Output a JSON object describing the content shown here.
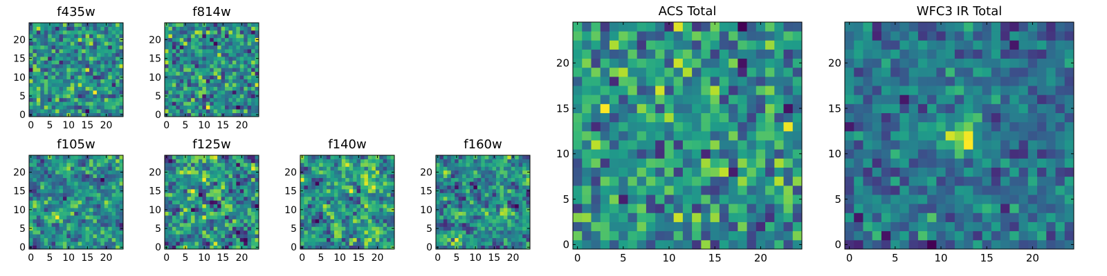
{
  "chart_data": [
    {
      "type": "heatmap",
      "title": "f435w",
      "grid": [
        25,
        25
      ],
      "cmap": "viridis",
      "x_ticks": [
        0,
        5,
        10,
        15,
        20
      ],
      "y_ticks": [
        0,
        5,
        10,
        15,
        20
      ],
      "seed": 11,
      "smooth": 0,
      "blob": null
    },
    {
      "type": "heatmap",
      "title": "f814w",
      "grid": [
        25,
        25
      ],
      "cmap": "viridis",
      "x_ticks": [
        0,
        5,
        10,
        15,
        20
      ],
      "y_ticks": [
        0,
        5,
        10,
        15,
        20
      ],
      "seed": 23,
      "smooth": 0,
      "blob": null
    },
    {
      "type": "heatmap",
      "title": "f105w",
      "grid": [
        25,
        25
      ],
      "cmap": "viridis",
      "x_ticks": [
        0,
        5,
        10,
        15,
        20
      ],
      "y_ticks": [
        0,
        5,
        10,
        15,
        20
      ],
      "seed": 37,
      "smooth": 1,
      "blob": null
    },
    {
      "type": "heatmap",
      "title": "f125w",
      "grid": [
        25,
        25
      ],
      "cmap": "viridis",
      "x_ticks": [
        0,
        5,
        10,
        15,
        20
      ],
      "y_ticks": [
        0,
        5,
        10,
        15,
        20
      ],
      "seed": 41,
      "smooth": 1,
      "blob": null
    },
    {
      "type": "heatmap",
      "title": "f140w",
      "grid": [
        25,
        25
      ],
      "cmap": "viridis",
      "x_ticks": [
        0,
        5,
        10,
        15,
        20
      ],
      "y_ticks": [
        0,
        5,
        10,
        15,
        20
      ],
      "seed": 53,
      "smooth": 1,
      "blob": null
    },
    {
      "type": "heatmap",
      "title": "f160w",
      "grid": [
        25,
        25
      ],
      "cmap": "viridis",
      "x_ticks": [
        0,
        5,
        10,
        15,
        20
      ],
      "y_ticks": [
        0,
        5,
        10,
        15,
        20
      ],
      "seed": 67,
      "smooth": 1,
      "blob": null
    },
    {
      "type": "heatmap",
      "title": "ACS Total",
      "grid": [
        25,
        25
      ],
      "cmap": "viridis",
      "x_ticks": [
        0,
        5,
        10,
        15,
        20
      ],
      "y_ticks": [
        0,
        5,
        10,
        15,
        20
      ],
      "seed": 79,
      "smooth": 0,
      "blob": null
    },
    {
      "type": "heatmap",
      "title": "WFC3 IR Total",
      "grid": [
        25,
        25
      ],
      "cmap": "viridis",
      "x_ticks": [
        0,
        5,
        10,
        15,
        20
      ],
      "y_ticks": [
        0,
        5,
        10,
        15,
        20
      ],
      "seed": 97,
      "smooth": 0,
      "blob": [
        12,
        12
      ]
    }
  ]
}
